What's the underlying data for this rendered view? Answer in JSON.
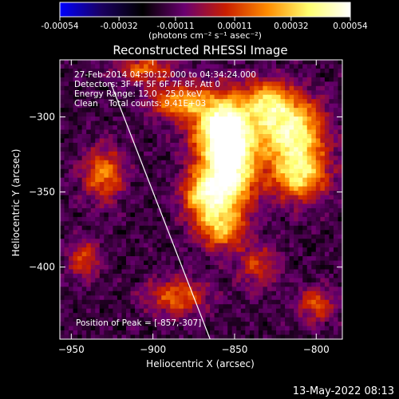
{
  "chart_data": {
    "type": "heatmap",
    "title": "Reconstructed RHESSI Image",
    "colorbar": {
      "ticks": [
        "-0.00054",
        "-0.00032",
        "-0.00011",
        "0.00011",
        "0.00032",
        "0.00054"
      ],
      "range": [
        -0.00054,
        0.00054
      ],
      "unit_label": "(photons cm⁻² s⁻¹ asec⁻²)",
      "colormap": [
        "#0000ff",
        "#1a0060",
        "#000000",
        "#6a0070",
        "#c81e00",
        "#ff8c00",
        "#ffff70",
        "#ffffff"
      ]
    },
    "xlabel": "Heliocentric X (arcsec)",
    "ylabel": "Heliocentric Y (arcsec)",
    "xlim": [
      -957,
      -784
    ],
    "ylim": [
      -448,
      -262
    ],
    "xticks": [
      -950,
      -900,
      -850,
      -800
    ],
    "yticks": [
      -300,
      -350,
      -400
    ],
    "annotations": [
      "27-Feb-2014 04:30:12.000 to 04:34:24.000",
      "Detectors: 3F 4F 5F 6F 7F 8F, Att 0",
      "Energy Range: 12.0 - 25.0 keV",
      "Clean    Total counts: 9.41E+03"
    ],
    "peak_label": "Position of Peak = [-857,-307]",
    "peak": {
      "x": -857,
      "y": -307
    },
    "limb_line": [
      {
        "x": -926,
        "y": -277
      },
      {
        "x": -865,
        "y": -448
      }
    ],
    "sources": [
      {
        "x": -857,
        "y": -307,
        "amp": 1.0,
        "sx": 13,
        "sy": 16
      },
      {
        "x": -852,
        "y": -337,
        "amp": 0.85,
        "sx": 11,
        "sy": 18
      },
      {
        "x": -868,
        "y": -352,
        "amp": 0.7,
        "sx": 10,
        "sy": 12
      },
      {
        "x": -858,
        "y": -375,
        "amp": 0.55,
        "sx": 10,
        "sy": 10
      },
      {
        "x": -815,
        "y": -310,
        "amp": 0.85,
        "sx": 14,
        "sy": 16
      },
      {
        "x": -810,
        "y": -340,
        "amp": 0.65,
        "sx": 12,
        "sy": 12
      },
      {
        "x": -830,
        "y": -290,
        "amp": 0.55,
        "sx": 10,
        "sy": 10
      },
      {
        "x": -885,
        "y": -290,
        "amp": 0.55,
        "sx": 12,
        "sy": 8
      },
      {
        "x": -930,
        "y": -338,
        "amp": 0.5,
        "sx": 9,
        "sy": 13
      },
      {
        "x": -942,
        "y": -395,
        "amp": 0.4,
        "sx": 7,
        "sy": 9
      },
      {
        "x": -885,
        "y": -420,
        "amp": 0.45,
        "sx": 13,
        "sy": 9
      },
      {
        "x": -835,
        "y": -400,
        "amp": 0.35,
        "sx": 9,
        "sy": 10
      },
      {
        "x": -800,
        "y": -425,
        "amp": 0.4,
        "sx": 8,
        "sy": 8
      },
      {
        "x": -905,
        "y": -268,
        "amp": 0.45,
        "sx": 12,
        "sy": 6
      }
    ]
  },
  "footer": {
    "timestamp": "13-May-2022 08:13"
  }
}
